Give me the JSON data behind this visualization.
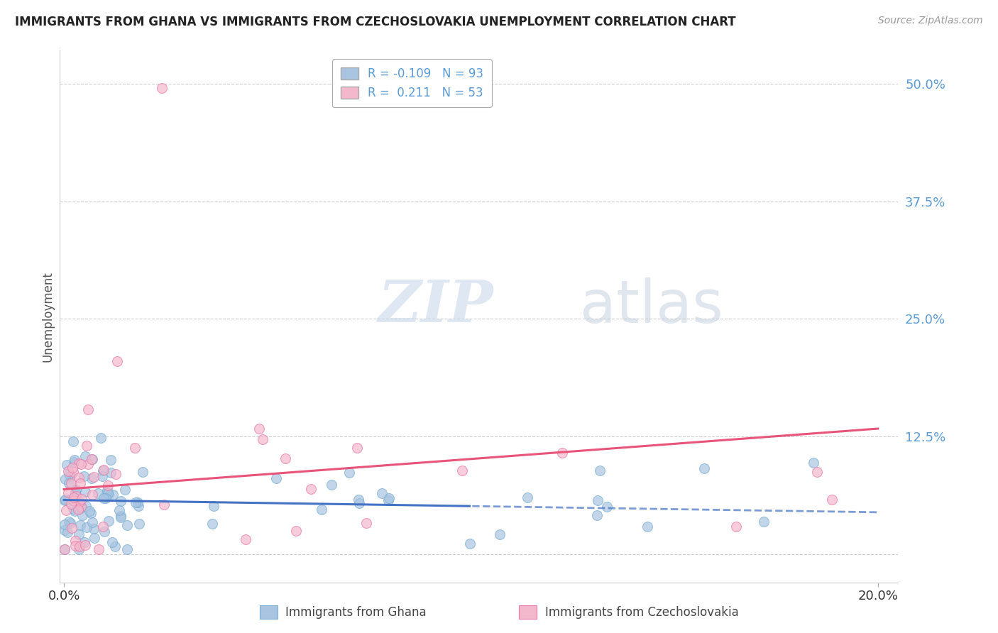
{
  "title": "IMMIGRANTS FROM GHANA VS IMMIGRANTS FROM CZECHOSLOVAKIA UNEMPLOYMENT CORRELATION CHART",
  "source": "Source: ZipAtlas.com",
  "ylabel": "Unemployment",
  "xlim": [
    -0.001,
    0.205
  ],
  "ylim": [
    -0.03,
    0.535
  ],
  "ghana_color": "#a8c4e0",
  "ghana_edge_color": "#7aafd4",
  "czech_color": "#f4b8cc",
  "czech_edge_color": "#e87aaa",
  "ghana_line_color": "#4472c4",
  "czech_line_color": "#e8547a",
  "ghana_R": -0.109,
  "ghana_N": 93,
  "czech_R": 0.211,
  "czech_N": 53,
  "watermark_zip": "ZIP",
  "watermark_atlas": "atlas",
  "legend_bottom_labels": [
    "Immigrants from Ghana",
    "Immigrants from Czechoslovakia"
  ],
  "background_color": "#ffffff",
  "grid_color": "#cccccc",
  "y_tick_positions": [
    0.0,
    0.125,
    0.25,
    0.375,
    0.5
  ],
  "y_tick_labels": [
    "",
    "12.5%",
    "25.0%",
    "37.5%",
    "50.0%"
  ],
  "x_tick_positions": [
    0.0,
    0.2
  ],
  "x_tick_labels": [
    "0.0%",
    "20.0%"
  ],
  "tick_color": "#5b9bd5",
  "solid_line_end": 0.1,
  "marker_size": 100
}
